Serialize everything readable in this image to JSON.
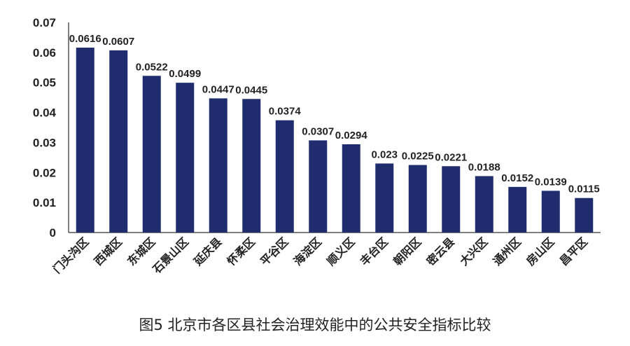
{
  "caption": "图5  北京市各区县社会治理效能中的公共安全指标比较",
  "chart_data": {
    "type": "bar",
    "title": "",
    "xlabel": "",
    "ylabel": "",
    "categories": [
      "门头沟区",
      "西城区",
      "东城区",
      "石景山区",
      "延庆县",
      "怀柔区",
      "平谷区",
      "海淀区",
      "顺义区",
      "丰台区",
      "朝阳区",
      "密云县",
      "大兴区",
      "通州区",
      "房山区",
      "昌平区"
    ],
    "values": [
      0.0616,
      0.0607,
      0.0522,
      0.0499,
      0.0447,
      0.0445,
      0.0374,
      0.0307,
      0.0294,
      0.023,
      0.0225,
      0.0221,
      0.0188,
      0.0152,
      0.0139,
      0.0115
    ],
    "value_labels": [
      "0.0616",
      "0.0607",
      "0.0522",
      "0.0499",
      "0.0447",
      "0.0445",
      "0.0374",
      "0.0307",
      "0.0294",
      "0.023",
      "0.0225",
      "0.0221",
      "0.0188",
      "0.0152",
      "0.0139",
      "0.0115"
    ],
    "yticks": [
      "0",
      "0.01",
      "0.02",
      "0.03",
      "0.04",
      "0.05",
      "0.06",
      "0.07"
    ],
    "ylim": [
      0,
      0.07
    ],
    "grid": false,
    "legend": "none",
    "bar_color": "#1f2d6e"
  }
}
